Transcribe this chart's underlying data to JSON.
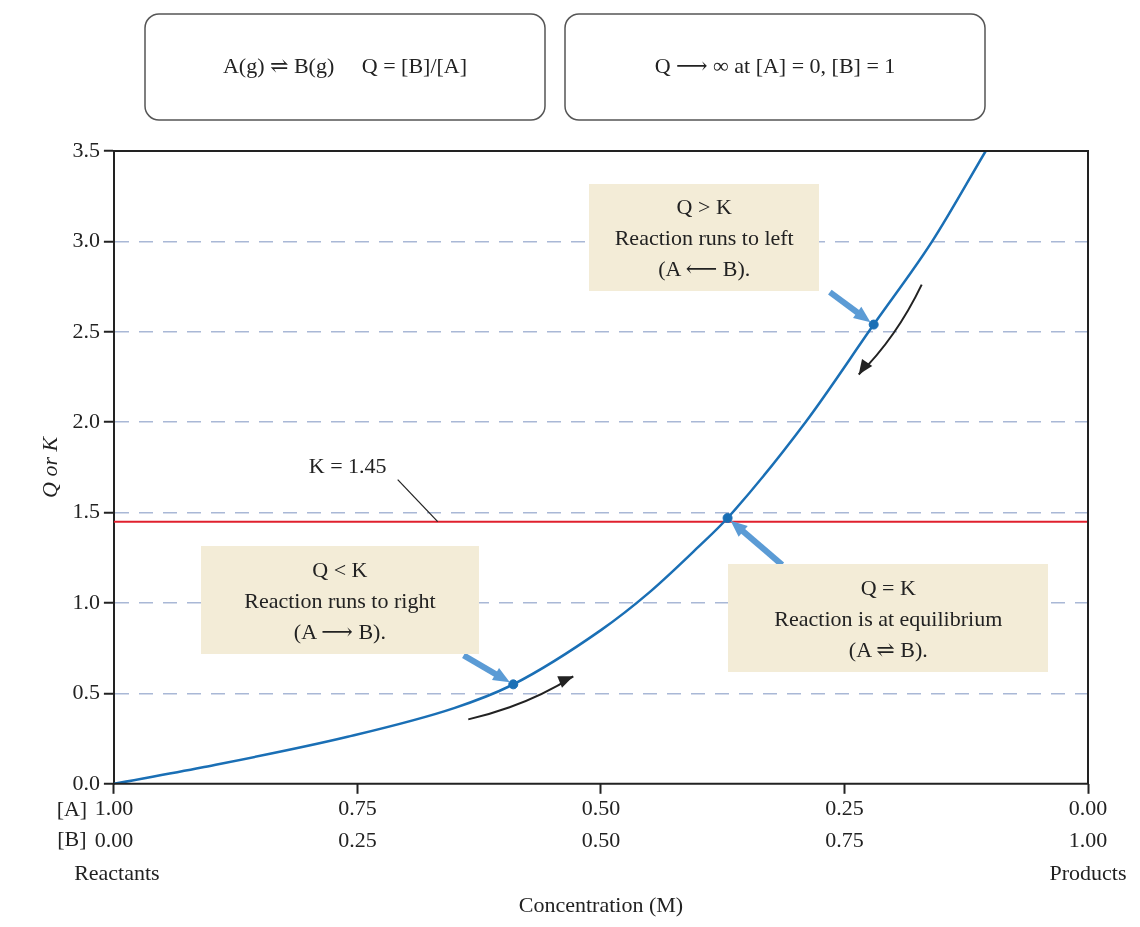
{
  "chart_data": {
    "type": "line",
    "xlabel": "Concentration (M)",
    "ylabel": "Q or K",
    "x2label": "[A]",
    "series": [
      {
        "color": "#1a6fb5",
        "x": [
          0,
          0.09,
          0.24,
          0.35,
          0.41,
          0.5,
          0.55,
          0.6,
          0.63,
          0.71,
          0.78,
          0.84,
          0.895
        ],
        "values": [
          0,
          0.09,
          0.26,
          0.42,
          0.55,
          0.85,
          1.06,
          1.31,
          1.47,
          2.0,
          2.54,
          3.0,
          3.5
        ]
      },
      {
        "type": "scatter",
        "marker": "circle",
        "color": "#1a6fb5",
        "x": [
          0.41,
          0.78,
          0.63
        ],
        "values": [
          0.55,
          2.54,
          1.47
        ]
      }
    ],
    "xlim": [
      0,
      1
    ],
    "xticks": [
      {
        "value": 0,
        "label": "0.00"
      },
      {
        "value": 0.25,
        "label": "0.25"
      },
      {
        "value": 0.5,
        "label": "0.50"
      },
      {
        "value": 0.75,
        "label": "0.75"
      },
      {
        "value": 1,
        "label": "1.00"
      }
    ],
    "x2lim": [
      1,
      0
    ],
    "x2ticks": [
      {
        "value": 1,
        "label": "1.00"
      },
      {
        "value": 0.75,
        "label": "0.75"
      },
      {
        "value": 0.5,
        "label": "0.50"
      },
      {
        "value": 0.25,
        "label": "0.25"
      },
      {
        "value": 0,
        "label": "0.00"
      }
    ],
    "ylim": [
      0,
      3.5
    ],
    "yticks": [
      {
        "value": 0,
        "label": "0.0"
      },
      {
        "value": 0.5,
        "label": "0.5"
      },
      {
        "value": 1,
        "label": "1.0"
      },
      {
        "value": 1.5,
        "label": "1.5"
      },
      {
        "value": 2,
        "label": "2.0"
      },
      {
        "value": 2.5,
        "label": "2.5"
      },
      {
        "value": 3,
        "label": "3.0"
      },
      {
        "value": 3.5,
        "label": "3.5"
      }
    ],
    "grid": "y",
    "legend": false,
    "marker": "none",
    "line_style": "solid",
    "ref_lines": [
      {
        "axis": "y",
        "value": 1.45,
        "label": "K = 1.45",
        "color": "#e0202e",
        "line_style": "solid"
      }
    ],
    "annotations": [
      "A(g) ⇌ B(g)     Q = [B]/[A]",
      "Q ⟶ ∞ at [A] = 0, [B] = 1",
      "[B]",
      "Reactants",
      "Products",
      "Q < K\nReaction runs to right\n(A ⟶ B).",
      "Q > K\nReaction runs to left\n(A ⟵ B).",
      "Q = K\nReaction is at equilibrium\n(A ⇌ B)."
    ]
  }
}
